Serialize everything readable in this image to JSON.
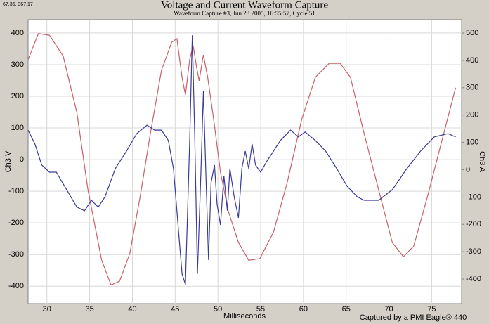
{
  "corner_note": "67.35, 367.17",
  "chart_data": {
    "type": "line",
    "title": "Voltage and Current Waveform Capture",
    "subtitle": "Waveform Capture #3, Jun 23 2005, 16:55:57,  Cycle 51",
    "x_label": "Milliseconds",
    "y_label": "Ch3 V",
    "y2_label": "Ch3 A",
    "footer": "Captured by a PMI Eagle® 440",
    "grid": true,
    "xlim": [
      27.8,
      78.5
    ],
    "xticks": [
      30,
      35,
      40,
      45,
      50,
      55,
      60,
      65,
      70,
      75
    ],
    "ylim": [
      -455,
      442
    ],
    "yticks": [
      -400,
      -300,
      -200,
      -100,
      0,
      100,
      200,
      300,
      400
    ],
    "y2lim": [
      -490,
      549
    ],
    "y2ticks": [
      -400,
      -300,
      -200,
      -100,
      0,
      100,
      200,
      300,
      400,
      500
    ],
    "series": [
      {
        "name": "Ch3 V",
        "color": "#c8606a",
        "x": [
          27.8,
          29.0,
          30.3,
          31.9,
          33.5,
          34.8,
          36.4,
          37.5,
          38.5,
          39.7,
          40.9,
          42.1,
          43.4,
          44.6,
          45.2,
          45.8,
          46.2,
          46.7,
          47.1,
          47.5,
          47.8,
          48.3,
          48.8,
          49.5,
          50.3,
          51.2,
          52.4,
          53.6,
          54.9,
          56.5,
          58.1,
          59.8,
          61.4,
          63.0,
          64.3,
          65.5,
          67.1,
          68.8,
          70.4,
          71.7,
          72.9,
          74.5,
          76.2,
          77.8
        ],
        "values": [
          316,
          398,
          393,
          327,
          149,
          -96,
          -318,
          -396,
          -384,
          -296,
          -118,
          82,
          282,
          371,
          382,
          260,
          204,
          316,
          360,
          293,
          249,
          331,
          260,
          127,
          -40,
          -162,
          -262,
          -318,
          -313,
          -229,
          -73,
          127,
          260,
          304,
          304,
          260,
          82,
          -96,
          -262,
          -307,
          -273,
          -118,
          60,
          227
        ]
      },
      {
        "name": "Ch3 A",
        "color": "#3a3a9a",
        "axis": "y2",
        "x": [
          27.8,
          28.6,
          29.4,
          30.3,
          31.1,
          32.3,
          33.5,
          34.4,
          35.2,
          36.0,
          36.8,
          38.0,
          39.3,
          40.5,
          41.7,
          42.6,
          43.4,
          44.2,
          44.8,
          45.4,
          45.8,
          46.2,
          46.7,
          47.0,
          47.3,
          47.6,
          48.0,
          48.3,
          48.6,
          48.9,
          49.2,
          49.6,
          49.9,
          50.3,
          50.7,
          51.1,
          51.4,
          51.9,
          52.4,
          52.8,
          53.2,
          53.6,
          54.0,
          54.4,
          55.0,
          55.7,
          56.5,
          57.3,
          58.1,
          58.5,
          59.4,
          60.2,
          61.4,
          62.6,
          63.9,
          65.1,
          66.3,
          67.1,
          68.8,
          70.4,
          72.1,
          73.7,
          75.3,
          76.9,
          77.8
        ],
        "values": [
          145,
          94,
          17,
          -9,
          -9,
          -73,
          -137,
          -150,
          -112,
          -137,
          -99,
          4,
          68,
          132,
          163,
          145,
          145,
          107,
          4,
          -227,
          -381,
          -420,
          107,
          492,
          107,
          -381,
          -22,
          287,
          -22,
          -330,
          -48,
          17,
          -125,
          -202,
          -22,
          -150,
          4,
          -99,
          -176,
          4,
          68,
          4,
          94,
          17,
          -9,
          30,
          68,
          107,
          132,
          145,
          120,
          138,
          107,
          68,
          4,
          -60,
          -99,
          -112,
          -112,
          -73,
          4,
          68,
          120,
          132,
          120
        ]
      }
    ]
  }
}
